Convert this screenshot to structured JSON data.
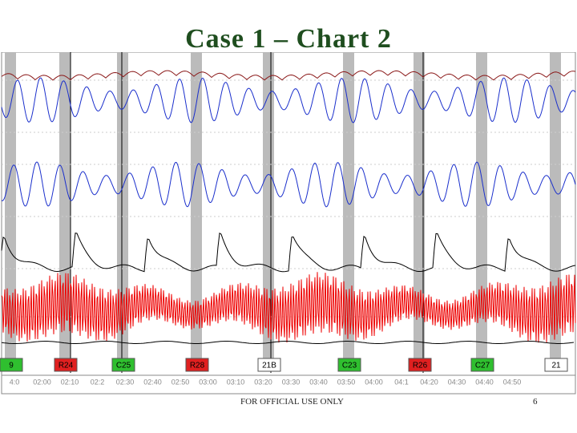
{
  "title": "Case 1 – Chart 2",
  "markers": [
    {
      "label": "9",
      "kind": "control"
    },
    {
      "label": "R24",
      "kind": "relevant"
    },
    {
      "label": "C25",
      "kind": "control"
    },
    {
      "label": "R28",
      "kind": "relevant"
    },
    {
      "label": "21B",
      "kind": "other"
    },
    {
      "label": "C23",
      "kind": "control"
    },
    {
      "label": "R26",
      "kind": "relevant"
    },
    {
      "label": "C27",
      "kind": "control"
    },
    {
      "label": "21",
      "kind": "other"
    }
  ],
  "time_labels": [
    "4:0",
    "02:00",
    "02:10",
    "02:2",
    "02:30",
    "02:40",
    "02:50",
    "03:00",
    "03:10",
    "03:20",
    "03:30",
    "03:40",
    "03:50",
    "04:00",
    "04:1",
    "04:20",
    "04:30",
    "04:40",
    "04:50"
  ],
  "footer": "FOR OFFICIAL USE ONLY",
  "page_number": "6"
}
